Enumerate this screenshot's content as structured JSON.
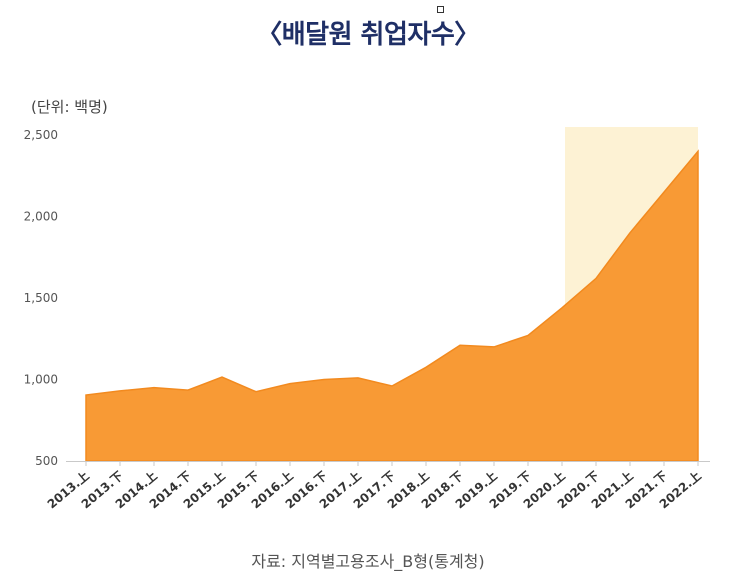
{
  "title": "〈배달원 취업자수〉",
  "unit_label": "(단위: 백명)",
  "source": "자료: 지역별고용조사_B형(통계청)",
  "colors": {
    "area_fill": "#f89a35",
    "area_stroke": "#f28a1f",
    "highlight": "#fdf2d4",
    "title": "#1f2f66"
  },
  "chart_data": {
    "type": "area",
    "x": [
      "2013.上",
      "2013.下",
      "2014.上",
      "2014.下",
      "2015.上",
      "2015.下",
      "2016.上",
      "2016.下",
      "2017.上",
      "2017.下",
      "2018.上",
      "2018.下",
      "2019.上",
      "2019.下",
      "2020.上",
      "2020.下",
      "2021.上",
      "2021.下",
      "2022.上"
    ],
    "values": [
      905,
      930,
      950,
      935,
      1015,
      925,
      975,
      1000,
      1010,
      960,
      1075,
      1210,
      1200,
      1270,
      1440,
      1620,
      1900,
      2150,
      2400
    ],
    "ylim": [
      500,
      2500
    ],
    "yticks": [
      500,
      1000,
      1500,
      2000,
      2500
    ],
    "ytick_labels": [
      "500",
      "1,000",
      "1,500",
      "2,000",
      "2,500"
    ],
    "highlight_range": [
      "2020.上",
      "2022.上"
    ],
    "grid": false
  }
}
